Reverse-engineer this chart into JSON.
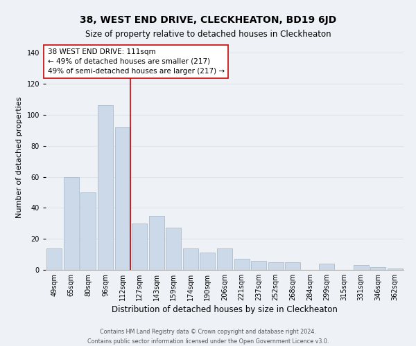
{
  "title": "38, WEST END DRIVE, CLECKHEATON, BD19 6JD",
  "subtitle": "Size of property relative to detached houses in Cleckheaton",
  "xlabel": "Distribution of detached houses by size in Cleckheaton",
  "ylabel": "Number of detached properties",
  "categories": [
    "49sqm",
    "65sqm",
    "80sqm",
    "96sqm",
    "112sqm",
    "127sqm",
    "143sqm",
    "159sqm",
    "174sqm",
    "190sqm",
    "206sqm",
    "221sqm",
    "237sqm",
    "252sqm",
    "268sqm",
    "284sqm",
    "299sqm",
    "315sqm",
    "331sqm",
    "346sqm",
    "362sqm"
  ],
  "values": [
    14,
    60,
    50,
    106,
    92,
    30,
    35,
    27,
    14,
    11,
    14,
    7,
    6,
    5,
    5,
    0,
    4,
    0,
    3,
    2,
    1
  ],
  "bar_color": "#ccd9e8",
  "bar_edge_color": "#aabccc",
  "grid_color": "#dde4ec",
  "background_color": "#eef2f7",
  "property_label": "38 WEST END DRIVE: 111sqm",
  "annotation_line1": "← 49% of detached houses are smaller (217)",
  "annotation_line2": "49% of semi-detached houses are larger (217) →",
  "vline_x": 4.45,
  "vline_color": "#cc0000",
  "annotation_box_color": "#ffffff",
  "annotation_box_edge": "#cc0000",
  "ylim": [
    0,
    145
  ],
  "yticks": [
    0,
    20,
    40,
    60,
    80,
    100,
    120,
    140
  ],
  "footer_line1": "Contains HM Land Registry data © Crown copyright and database right 2024.",
  "footer_line2": "Contains public sector information licensed under the Open Government Licence v3.0.",
  "title_fontsize": 10,
  "subtitle_fontsize": 8.5,
  "annot_fontsize": 7.5,
  "tick_fontsize": 7,
  "ylabel_fontsize": 8,
  "xlabel_fontsize": 8.5,
  "footer_fontsize": 5.8
}
